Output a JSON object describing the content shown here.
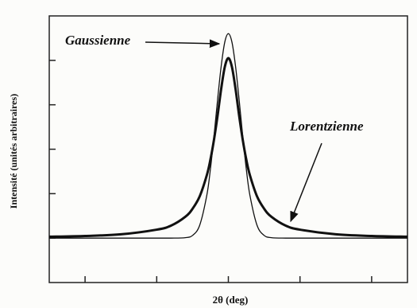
{
  "chart_data": {
    "type": "line",
    "xlabel": "2θ (deg)",
    "ylabel": "Intensité (unités arbitraires)",
    "x": [
      -2.5,
      -2,
      -1.5,
      -1,
      -0.8,
      -0.6,
      -0.5,
      -0.4,
      -0.3,
      -0.25,
      -0.2,
      -0.15,
      -0.1,
      -0.05,
      0,
      0.05,
      0.1,
      0.15,
      0.2,
      0.25,
      0.3,
      0.4,
      0.5,
      0.6,
      0.8,
      1,
      1.5,
      2,
      2.5
    ],
    "series": [
      {
        "name": "Gaussienne",
        "color": "#111111",
        "values": [
          0,
          0,
          0,
          0,
          0,
          0.01,
          0.06,
          0.29,
          0.97,
          1.56,
          2.3,
          3.12,
          3.87,
          4.41,
          4.6,
          4.41,
          3.87,
          3.12,
          2.3,
          1.56,
          0.97,
          0.29,
          0.06,
          0.01,
          0,
          0,
          0,
          0,
          0
        ]
      },
      {
        "name": "Lorentzienne",
        "color": "#111111",
        "values": [
          0.031,
          0.048,
          0.085,
          0.19,
          0.28,
          0.48,
          0.66,
          0.94,
          1.42,
          1.77,
          2.22,
          2.76,
          3.36,
          3.85,
          4.05,
          3.85,
          3.36,
          2.76,
          2.22,
          1.77,
          1.42,
          0.94,
          0.66,
          0.48,
          0.28,
          0.19,
          0.085,
          0.048,
          0.031
        ]
      }
    ],
    "xlim": [
      -2.5,
      2.5
    ],
    "xticks": [
      -2,
      -1,
      0,
      1,
      2
    ],
    "ylim": [
      -1,
      5
    ],
    "yticks": [
      0,
      1,
      2,
      3,
      4
    ]
  }
}
